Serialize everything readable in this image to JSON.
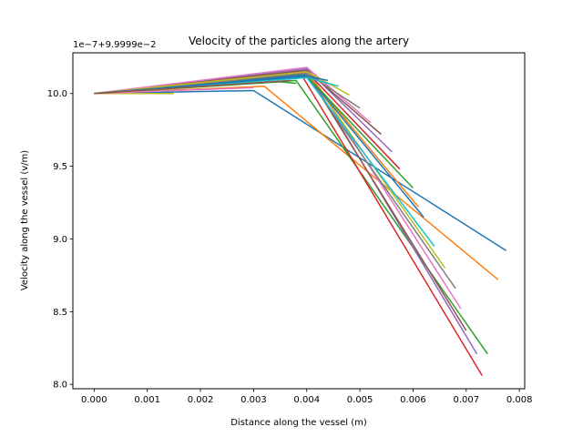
{
  "chart_data": {
    "type": "line",
    "title": "Velocity of the particles along the artery",
    "xlabel": "Distance along the vessel (m)",
    "ylabel": "Velocity along the vessel (v/m)",
    "y_offset_label": "1e−7+9.9999e−2",
    "xlim": [
      -0.0004,
      0.0081
    ],
    "ylim": [
      7.97,
      10.28
    ],
    "xticks": [
      0.0,
      0.001,
      0.002,
      0.003,
      0.004,
      0.005,
      0.006,
      0.007,
      0.008
    ],
    "xtick_labels": [
      "0.000",
      "0.001",
      "0.002",
      "0.003",
      "0.004",
      "0.005",
      "0.006",
      "0.007",
      "0.008"
    ],
    "yticks": [
      8.0,
      8.5,
      9.0,
      9.5,
      10.0
    ],
    "ytick_labels": [
      "8.0",
      "8.5",
      "9.0",
      "9.5",
      "10.0"
    ],
    "grid": false,
    "legend": "none",
    "series": [
      {
        "color": "#1f77b4",
        "x": [
          0.0,
          0.003,
          0.00775
        ],
        "y": [
          10.0,
          10.02,
          8.92
        ]
      },
      {
        "color": "#ff7f0e",
        "x": [
          0.0,
          0.0032,
          0.0076
        ],
        "y": [
          10.0,
          10.05,
          8.72
        ]
      },
      {
        "color": "#2ca02c",
        "x": [
          0.0,
          0.0038,
          0.0074
        ],
        "y": [
          10.0,
          10.09,
          8.21
        ]
      },
      {
        "color": "#d62728",
        "x": [
          0.0,
          0.0039,
          0.0073
        ],
        "y": [
          10.0,
          10.13,
          8.06
        ]
      },
      {
        "color": "#9467bd",
        "x": [
          0.0,
          0.004,
          0.0072
        ],
        "y": [
          10.0,
          10.16,
          8.21
        ]
      },
      {
        "color": "#8c564b",
        "x": [
          0.0,
          0.004,
          0.007
        ],
        "y": [
          10.0,
          10.14,
          8.37
        ]
      },
      {
        "color": "#e377c2",
        "x": [
          0.0,
          0.004,
          0.0069
        ],
        "y": [
          10.0,
          10.17,
          8.52
        ]
      },
      {
        "color": "#7f7f7f",
        "x": [
          0.0,
          0.004,
          0.0068
        ],
        "y": [
          10.0,
          10.12,
          8.66
        ]
      },
      {
        "color": "#bcbd22",
        "x": [
          0.0,
          0.004,
          0.0066
        ],
        "y": [
          10.0,
          10.15,
          8.8
        ]
      },
      {
        "color": "#17becf",
        "x": [
          0.0,
          0.004,
          0.0064
        ],
        "y": [
          10.0,
          10.11,
          8.95
        ]
      },
      {
        "color": "#1f77b4",
        "x": [
          0.0,
          0.004,
          0.0062
        ],
        "y": [
          10.0,
          10.13,
          9.15
        ]
      },
      {
        "color": "#ff7f0e",
        "x": [
          0.0,
          0.004,
          0.0061
        ],
        "y": [
          10.0,
          10.14,
          9.22
        ]
      },
      {
        "color": "#2ca02c",
        "x": [
          0.0,
          0.004,
          0.006
        ],
        "y": [
          10.0,
          10.12,
          9.35
        ]
      },
      {
        "color": "#d62728",
        "x": [
          0.0,
          0.004,
          0.00575
        ],
        "y": [
          10.0,
          10.15,
          9.48
        ]
      },
      {
        "color": "#9467bd",
        "x": [
          0.0,
          0.004,
          0.0056
        ],
        "y": [
          10.0,
          10.17,
          9.6
        ]
      },
      {
        "color": "#8c564b",
        "x": [
          0.0,
          0.004,
          0.0054
        ],
        "y": [
          10.0,
          10.16,
          9.72
        ]
      },
      {
        "color": "#e377c2",
        "x": [
          0.0,
          0.004,
          0.0052
        ],
        "y": [
          10.0,
          10.18,
          9.8
        ]
      },
      {
        "color": "#7f7f7f",
        "x": [
          0.0,
          0.004,
          0.005
        ],
        "y": [
          10.0,
          10.14,
          9.9
        ]
      },
      {
        "color": "#bcbd22",
        "x": [
          0.0,
          0.004,
          0.0048
        ],
        "y": [
          10.0,
          10.15,
          9.99
        ]
      },
      {
        "color": "#17becf",
        "x": [
          0.0,
          0.004,
          0.0046
        ],
        "y": [
          10.0,
          10.11,
          10.05
        ]
      },
      {
        "color": "#1f77b4",
        "x": [
          0.0,
          0.004,
          0.0044
        ],
        "y": [
          10.0,
          10.12,
          10.09
        ]
      },
      {
        "color": "#2ca02c",
        "x": [
          0.0,
          0.0035,
          0.0038
        ],
        "y": [
          10.0,
          10.08,
          10.07
        ]
      },
      {
        "color": "#bcbd22",
        "x": [
          0.0,
          0.0015
        ],
        "y": [
          10.0,
          10.0
        ]
      },
      {
        "color": "#e377c2",
        "x": [
          0.0,
          0.003
        ],
        "y": [
          10.0,
          10.04
        ]
      },
      {
        "color": "#8c564b",
        "x": [
          0.0,
          0.0037
        ],
        "y": [
          10.0,
          10.09
        ]
      }
    ]
  }
}
